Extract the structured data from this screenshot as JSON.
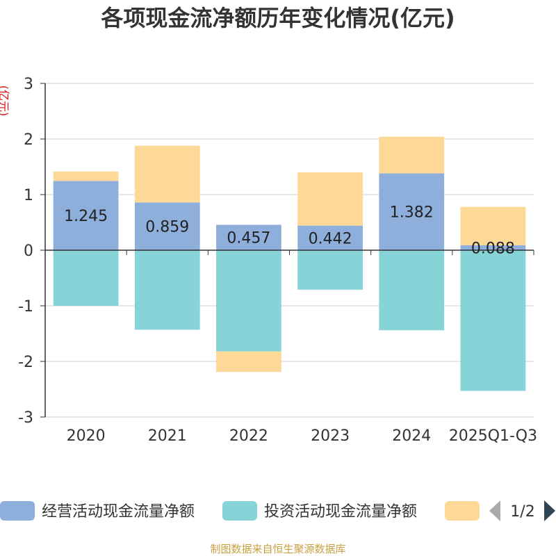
{
  "chart_data": {
    "type": "bar",
    "stacked": true,
    "title": "各项现金流净额历年变化情况(亿元)",
    "ylabel": "(亿元)",
    "ylim": [
      -3,
      3
    ],
    "yticks": [
      3,
      2,
      1,
      0,
      -1,
      -2,
      -3
    ],
    "grid": true,
    "legend_position": "bottom",
    "categories": [
      "2020",
      "2021",
      "2022",
      "2023",
      "2024",
      "2025Q1-Q3"
    ],
    "series": [
      {
        "name": "经营活动现金流量净额",
        "color": "#8eaedb",
        "values": [
          1.245,
          0.859,
          0.457,
          0.442,
          1.382,
          0.088
        ]
      },
      {
        "name": "投资活动现金流量净额",
        "color": "#86d4d8",
        "values": [
          -1.0,
          -1.43,
          -1.82,
          -0.71,
          -1.44,
          -2.53
        ]
      },
      {
        "name": "",
        "color": "#fed897",
        "values": [
          0.17,
          1.02,
          -0.37,
          0.96,
          0.66,
          0.69
        ]
      }
    ],
    "data_labels": [
      "1.245",
      "0.859",
      "0.457",
      "0.442",
      "1.382",
      "0.088"
    ]
  },
  "legend": {
    "items": [
      "经营活动现金流量净额",
      "投资活动现金流量净额",
      ""
    ],
    "page": "1/2"
  },
  "source": "制图数据来自恒生聚源数据库"
}
